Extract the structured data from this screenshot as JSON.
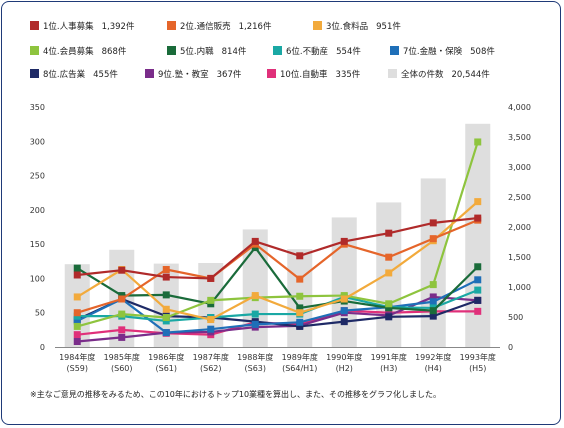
{
  "legend": [
    {
      "label": "1位.人事募集",
      "count": "1,392件",
      "color": "#b02a2a"
    },
    {
      "label": "2位.通信販売",
      "count": "1,216件",
      "color": "#e5652a"
    },
    {
      "label": "3位.食料品",
      "count": "951件",
      "color": "#f2aa3c"
    },
    {
      "label": "4位.会員募集",
      "count": "868件",
      "color": "#8ec43e"
    },
    {
      "label": "5位.内職",
      "count": "814件",
      "color": "#1a6b3a"
    },
    {
      "label": "6位.不動産",
      "count": "554件",
      "color": "#1aa8a4"
    },
    {
      "label": "7位.金融・保険",
      "count": "508件",
      "color": "#1f6fb8"
    },
    {
      "label": "8位.広告業",
      "count": "455件",
      "color": "#1e2a66"
    },
    {
      "label": "9位.塾・教室",
      "count": "367件",
      "color": "#7a2d8a"
    },
    {
      "label": "10位.自動車",
      "count": "335件",
      "color": "#e0307a"
    },
    {
      "label": "全体の件数",
      "count": "20,544件",
      "color": "#dedede"
    }
  ],
  "footnote": "※主なご意見の推移をみるため、この10年におけるトップ10業種を算出し、また、その推移をグラフ化しました。",
  "chart_data": {
    "type": "bar+line",
    "categories": [
      [
        "1984年度",
        "(S59)"
      ],
      [
        "1985年度",
        "(S60)"
      ],
      [
        "1986年度",
        "(S61)"
      ],
      [
        "1987年度",
        "(S62)"
      ],
      [
        "1988年度",
        "(S63)"
      ],
      [
        "1989年度",
        "(S64/H1)"
      ],
      [
        "1990年度",
        "(H2)"
      ],
      [
        "1991年度",
        "(H3)"
      ],
      [
        "1992年度",
        "(H4)"
      ],
      [
        "1993年度",
        "(H5)"
      ]
    ],
    "y_left": {
      "min": 0,
      "max": 350,
      "ticks": [
        0,
        50,
        100,
        150,
        200,
        250,
        300,
        350
      ]
    },
    "y_right": {
      "min": 0,
      "max": 4000,
      "ticks": [
        "0",
        "500",
        "1,000",
        "1,500",
        "2,000",
        "2,500",
        "3,000",
        "3,500",
        "4,000"
      ],
      "tick_values": [
        0,
        500,
        1000,
        1500,
        2000,
        2500,
        3000,
        3500,
        4000
      ]
    },
    "bars": {
      "name": "全体の件数",
      "axis": "right",
      "color": "#dedede",
      "values": [
        1380,
        1620,
        1390,
        1400,
        1960,
        1630,
        2160,
        2410,
        2810,
        3720
      ]
    },
    "series": [
      {
        "name": "1位.人事募集",
        "color": "#b02a2a",
        "values": [
          105,
          112,
          102,
          100,
          154,
          133,
          154,
          166,
          181,
          188
        ]
      },
      {
        "name": "2位.通信販売",
        "color": "#e5652a",
        "values": [
          50,
          70,
          113,
          100,
          150,
          99,
          150,
          131,
          158,
          185
        ]
      },
      {
        "name": "3位.食料品",
        "color": "#f2aa3c",
        "values": [
          73,
          113,
          55,
          40,
          75,
          50,
          70,
          108,
          155,
          212
        ]
      },
      {
        "name": "4位.会員募集",
        "color": "#8ec43e",
        "values": [
          30,
          48,
          43,
          68,
          72,
          74,
          75,
          63,
          91,
          299
        ]
      },
      {
        "name": "5位.内職",
        "color": "#1a6b3a",
        "values": [
          115,
          75,
          76,
          63,
          145,
          57,
          67,
          57,
          53,
          117
        ]
      },
      {
        "name": "6位.不動産",
        "color": "#1aa8a4",
        "values": [
          45,
          45,
          38,
          43,
          48,
          48,
          73,
          58,
          57,
          83
        ]
      },
      {
        "name": "7位.金融・保険",
        "color": "#1f6fb8",
        "values": [
          38,
          70,
          21,
          26,
          33,
          36,
          53,
          58,
          66,
          98
        ]
      },
      {
        "name": "8位.広告業",
        "color": "#1e2a66",
        "values": [
          40,
          70,
          45,
          43,
          37,
          30,
          37,
          44,
          45,
          68
        ]
      },
      {
        "name": "9位.塾・教室",
        "color": "#7a2d8a",
        "values": [
          8,
          14,
          21,
          22,
          29,
          31,
          50,
          46,
          73,
          68
        ]
      },
      {
        "name": "10位.自動車",
        "color": "#e0307a",
        "values": [
          18,
          25,
          20,
          18,
          36,
          33,
          53,
          50,
          52,
          52
        ]
      }
    ],
    "grid": false,
    "legend_position": "top"
  }
}
